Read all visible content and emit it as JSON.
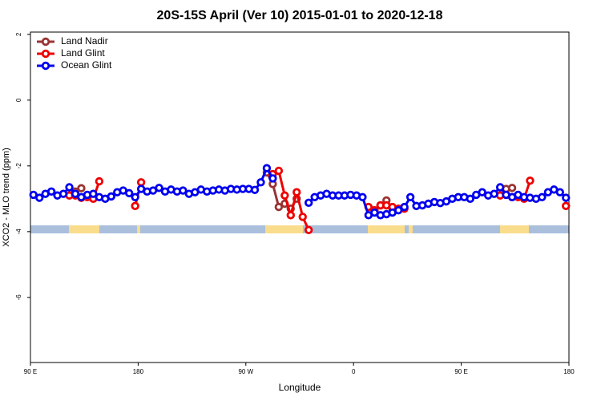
{
  "chart_data": {
    "type": "line",
    "title": "20S-15S April (Ver 10)   2015-01-01 to 2020-12-18",
    "x_label": "Longitude",
    "y_label": "XCO2 - MLO trend (ppm)",
    "xlim": [
      90,
      540
    ],
    "ylim": [
      -7.98,
      2.07
    ],
    "xticks": [
      {
        "value": 90,
        "label": "90 E"
      },
      180,
      {
        "value": 270,
        "label": "90 W"
      },
      {
        "value": 360,
        "label": "0"
      },
      {
        "value": 450,
        "label": "90 E"
      },
      {
        "value": 540,
        "label": "180"
      }
    ],
    "yticks": [
      -6,
      -4,
      -2,
      0,
      2
    ],
    "legend": "top-left",
    "x": [
      92.5,
      97.5,
      102.5,
      107.5,
      112.5,
      117.5,
      122.5,
      127.5,
      132.5,
      137.5,
      142.5,
      147.5,
      152.5,
      157.5,
      162.5,
      167.5,
      172.5,
      177.5,
      182.5,
      187.5,
      192.5,
      197.5,
      202.5,
      207.5,
      212.5,
      217.5,
      222.5,
      227.5,
      232.5,
      237.5,
      242.5,
      247.5,
      252.5,
      257.5,
      262.5,
      267.5,
      272.5,
      277.5,
      282.5,
      287.5,
      292.5,
      297.5,
      302.5,
      307.5,
      312.5,
      317.5,
      322.5,
      327.5,
      332.5,
      337.5,
      342.5,
      347.5,
      352.5,
      357.5,
      362.5,
      367.5,
      372.5,
      377.5,
      382.5,
      387.5,
      392.5,
      397.5,
      402.5,
      407.5,
      412.5,
      417.5,
      422.5,
      427.5,
      432.5,
      437.5,
      442.5,
      447.5,
      452.5,
      457.5,
      462.5,
      467.5,
      472.5,
      477.5,
      482.5,
      487.5,
      492.5,
      497.5,
      502.5,
      507.5,
      512.5,
      517.5,
      522.5,
      527.5,
      532.5,
      537.5
    ],
    "series": [
      {
        "name": "Land Nadir",
        "color": "#993333",
        "values": [
          null,
          null,
          null,
          null,
          null,
          null,
          null,
          -2.78,
          -2.68,
          null,
          null,
          null,
          null,
          null,
          null,
          null,
          null,
          null,
          null,
          null,
          null,
          null,
          null,
          null,
          null,
          null,
          null,
          null,
          null,
          null,
          null,
          null,
          null,
          null,
          null,
          null,
          null,
          null,
          null,
          -2.2,
          -2.55,
          -3.25,
          -3.15,
          -3.3,
          -3.0,
          null,
          null,
          null,
          null,
          null,
          null,
          null,
          null,
          null,
          null,
          null,
          null,
          -3.35,
          -3.2,
          -3.05,
          -3.3,
          null,
          null,
          null,
          null,
          null,
          null,
          null,
          null,
          null,
          null,
          null,
          null,
          null,
          null,
          null,
          null,
          null,
          null,
          -2.7,
          -2.67,
          null,
          null,
          null,
          null,
          null,
          null,
          null,
          null,
          null
        ]
      },
      {
        "name": "Land Glint",
        "color": "#ee0000",
        "values": [
          null,
          null,
          null,
          null,
          null,
          null,
          -2.9,
          -2.9,
          -2.97,
          -2.95,
          -3.0,
          -2.47,
          null,
          null,
          null,
          null,
          null,
          -3.22,
          -2.5,
          null,
          null,
          null,
          null,
          null,
          null,
          null,
          null,
          null,
          null,
          null,
          null,
          null,
          null,
          null,
          null,
          null,
          null,
          null,
          null,
          null,
          -2.25,
          -2.15,
          -2.9,
          -3.5,
          -2.8,
          -3.55,
          -3.95,
          null,
          null,
          null,
          null,
          null,
          null,
          null,
          null,
          null,
          -3.25,
          -3.35,
          -3.2,
          -3.2,
          -3.25,
          -3.3,
          -3.3,
          null,
          null,
          null,
          null,
          null,
          null,
          null,
          null,
          null,
          null,
          null,
          null,
          null,
          null,
          null,
          -2.9,
          -2.88,
          -2.95,
          -2.95,
          -3.0,
          -2.45,
          null,
          null,
          null,
          null,
          null,
          -3.22
        ]
      },
      {
        "name": "Ocean Glint",
        "color": "#0000ee",
        "values": [
          -2.88,
          -2.97,
          -2.85,
          -2.78,
          -2.9,
          -2.85,
          -2.65,
          -2.85,
          -2.95,
          -2.88,
          -2.85,
          -2.95,
          -3.0,
          -2.93,
          -2.8,
          -2.75,
          -2.83,
          -2.95,
          -2.7,
          -2.78,
          -2.75,
          -2.67,
          -2.78,
          -2.72,
          -2.78,
          -2.75,
          -2.85,
          -2.8,
          -2.72,
          -2.78,
          -2.75,
          -2.72,
          -2.75,
          -2.7,
          -2.72,
          -2.7,
          -2.7,
          -2.73,
          -2.5,
          -2.07,
          -2.38,
          null,
          null,
          null,
          null,
          null,
          -3.12,
          -2.95,
          -2.9,
          -2.85,
          -2.9,
          -2.9,
          -2.9,
          -2.88,
          -2.9,
          -2.95,
          -3.5,
          -3.42,
          -3.5,
          -3.47,
          -3.42,
          -3.35,
          -3.25,
          -2.95,
          -3.22,
          -3.2,
          -3.15,
          -3.1,
          -3.13,
          -3.08,
          -3.0,
          -2.95,
          -2.95,
          -3.0,
          -2.88,
          -2.8,
          -2.9,
          -2.85,
          -2.65,
          -2.88,
          -2.95,
          -2.88,
          -2.95,
          -2.97,
          -3.0,
          -2.95,
          -2.8,
          -2.72,
          -2.8,
          -2.97
        ]
      }
    ]
  }
}
